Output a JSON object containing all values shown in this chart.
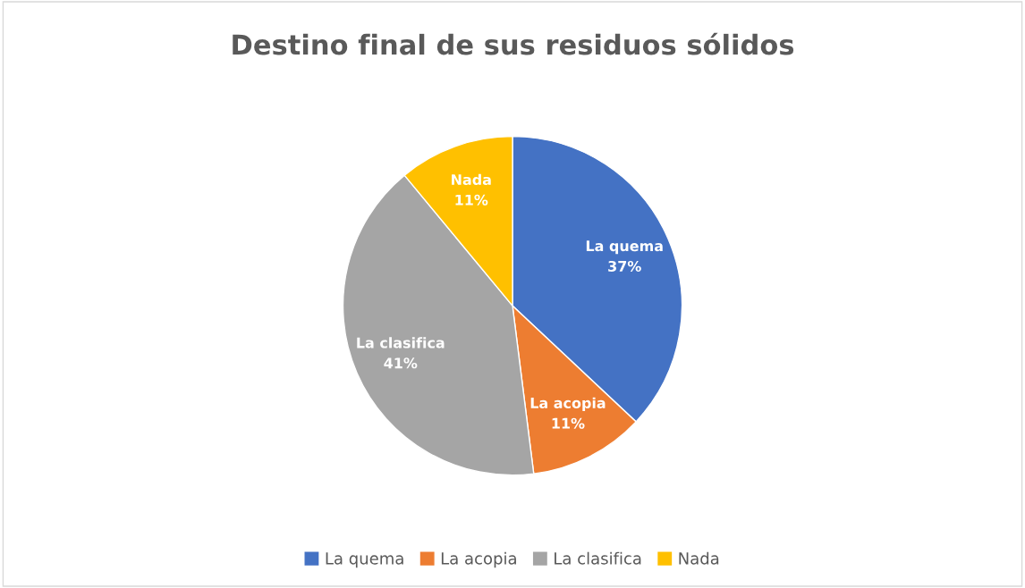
{
  "chart_data": {
    "type": "pie",
    "title": "Destino final de sus residuos sólidos",
    "categories": [
      "La quema",
      "La acopia",
      "La clasifica",
      "Nada"
    ],
    "values": [
      37,
      11,
      41,
      11
    ],
    "value_labels": [
      "37%",
      "11%",
      "41%",
      "11%"
    ],
    "colors": [
      "#4472c4",
      "#ed7d31",
      "#a5a5a5",
      "#ffc000"
    ],
    "legend": "bottom"
  }
}
